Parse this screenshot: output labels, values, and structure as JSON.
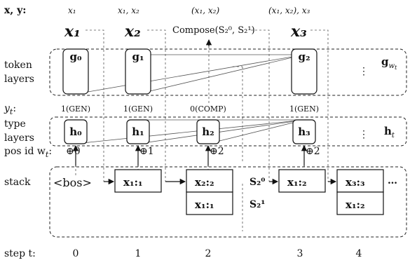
{
  "row_labels": {
    "xy": "x, y:",
    "token_layers": [
      "token",
      "layers"
    ],
    "yt": "y",
    "yt_sub": "t",
    "yt_colon": ":",
    "type_layers": [
      "type",
      "layers"
    ],
    "pos_id": "pos id w",
    "pos_id_sub": "t",
    "pos_id_colon": ":",
    "stack": "stack",
    "step": "step t:"
  },
  "header_inputs": [
    "x₁",
    "x₁, x₂",
    "(x₁, x₂)",
    "(x₁, x₂), x₃"
  ],
  "big_tokens": [
    "x₁",
    "x₂",
    "x₃"
  ],
  "compose_text": "Compose(S₂⁰, S₂¹)",
  "token_nodes": [
    "g₀",
    "g₁",
    "g₂"
  ],
  "token_last": {
    "base": "g",
    "sub": "w",
    "subsub": "t"
  },
  "ellipsis": "⋮",
  "yt_values": [
    "1(GEN)",
    "1(GEN)",
    "0(COMP)",
    "1(GEN)"
  ],
  "type_nodes": [
    "h₀",
    "h₁",
    "h₂",
    "h₃"
  ],
  "type_last": {
    "base": "h",
    "sub": "t"
  },
  "pos_ids": [
    "⊕0",
    "⊕1",
    "⊕2",
    "⊕2"
  ],
  "stack": {
    "bos": "<bos>",
    "step1": [
      "x₁:₁"
    ],
    "step2": [
      "x₂:₂",
      "x₁:₁"
    ],
    "step2_labels": [
      "S₂⁰",
      "S₂¹"
    ],
    "step3": [
      "x₁:₂"
    ],
    "step4": [
      "x₃:₃",
      "x₁:₂"
    ],
    "more": "…"
  },
  "steps": [
    "0",
    "1",
    "2",
    "3",
    "4"
  ]
}
